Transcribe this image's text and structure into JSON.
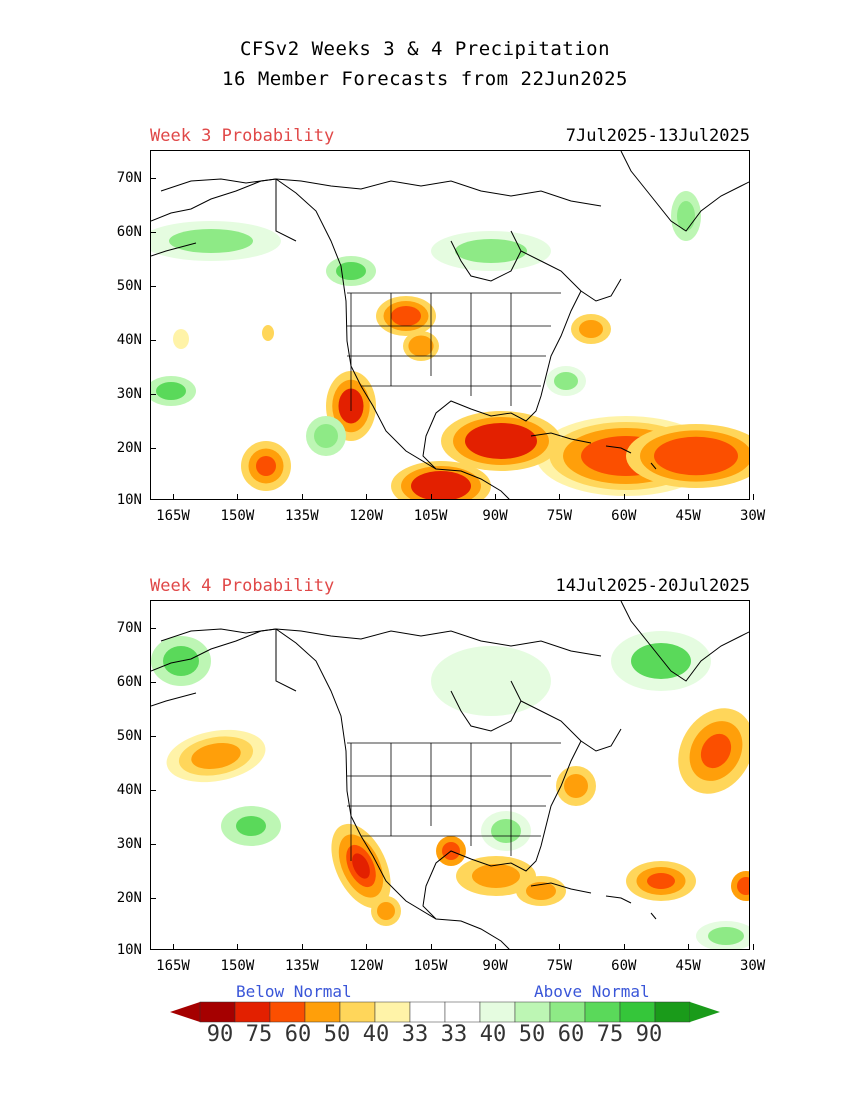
{
  "header": {
    "title_line1": "CFSv2 Weeks 3 & 4 Precipitation",
    "title_line2": "16 Member Forecasts from 22Jun2025"
  },
  "panels": [
    {
      "label": "Week 3 Probability",
      "dates": "7Jul2025-13Jul2025"
    },
    {
      "label": "Week 4 Probability",
      "dates": "14Jul2025-20Jul2025"
    }
  ],
  "axes": {
    "y_ticks": [
      "70N",
      "60N",
      "50N",
      "40N",
      "30N",
      "20N",
      "10N"
    ],
    "x_ticks": [
      "165W",
      "150W",
      "135W",
      "120W",
      "105W",
      "90W",
      "75W",
      "60W",
      "45W",
      "30W"
    ]
  },
  "legend": {
    "below_label": "Below Normal",
    "above_label": "Above Normal",
    "below_values": [
      "90",
      "75",
      "60",
      "50",
      "40",
      "33"
    ],
    "above_values": [
      "33",
      "40",
      "50",
      "60",
      "75",
      "90"
    ],
    "below_colors": [
      "#a50000",
      "#e32000",
      "#fb4f00",
      "#ff9f0a",
      "#ffd65a",
      "#fff3a8"
    ],
    "above_colors": [
      "#e5fce0",
      "#bdf6b4",
      "#8eea86",
      "#5ad95a",
      "#35c63a",
      "#1a9b1a"
    ]
  }
}
